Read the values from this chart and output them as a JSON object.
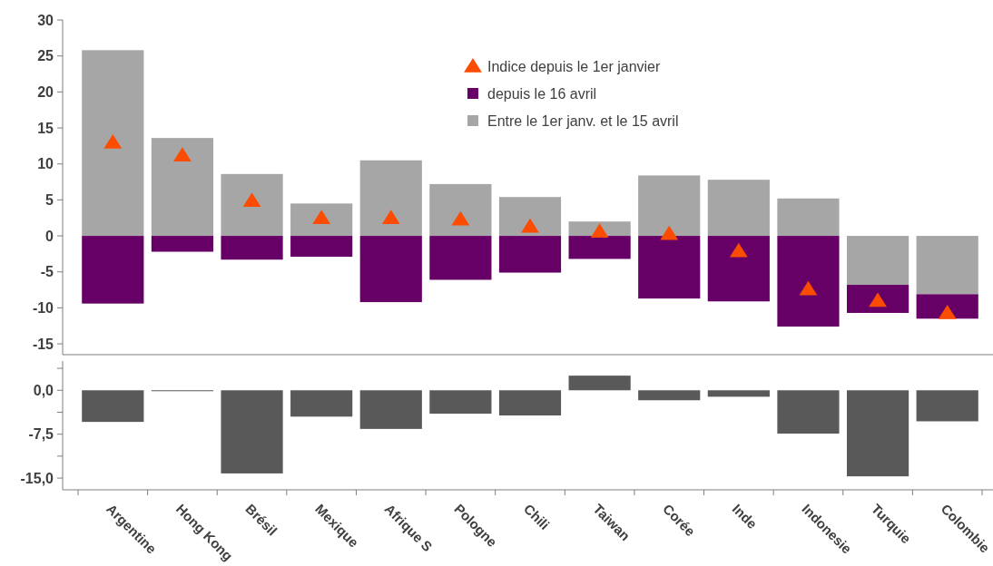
{
  "chart_data": [
    {
      "type": "bar",
      "stacked": true,
      "categories": [
        null,
        null,
        null,
        null,
        null,
        null,
        null,
        null,
        null,
        null,
        null,
        null,
        null
      ],
      "series": [
        {
          "name": "Entre le 1er janv. et le 15 avril",
          "color": "#a6a6a6",
          "values": [
            25.8,
            13.6,
            8.6,
            4.5,
            10.5,
            7.2,
            5.4,
            2.0,
            8.4,
            7.8,
            5.2,
            -6.8,
            -8.1
          ]
        },
        {
          "name": "depuis le 16 avril",
          "color": "#660066",
          "values": [
            -9.4,
            -2.2,
            -3.3,
            -2.9,
            -9.2,
            -6.1,
            -5.1,
            -3.2,
            -8.7,
            -9.1,
            -12.6,
            -3.9,
            -3.4
          ]
        },
        {
          "name": "Indice depuis le 1er janvier",
          "type": "scatter",
          "marker": "triangle",
          "color": "#fc4c02",
          "values": [
            13.0,
            11.2,
            4.9,
            2.5,
            2.5,
            2.3,
            1.3,
            0.6,
            0.3,
            -2.1,
            -7.4,
            -9.0,
            -10.7
          ]
        }
      ],
      "ylim": [
        -16.5,
        30
      ],
      "yticks": [
        -15,
        -10,
        -5,
        0,
        5,
        10,
        15,
        20,
        25,
        30
      ],
      "tick_labels": "y",
      "legend": "top right"
    },
    {
      "type": "bar",
      "categories": [
        "Argentine",
        "Hong Kong",
        "Brésil",
        "Mexique",
        "Afrique S",
        "Pologne",
        "Chili",
        "Taiwan",
        "Corée",
        "Inde",
        "Indonesie",
        "Turquie",
        "Colombie"
      ],
      "values": [
        -5.4,
        -0.1,
        -14.2,
        -4.5,
        -6.6,
        -4.0,
        -4.3,
        2.5,
        -1.7,
        -1.1,
        -7.4,
        -14.7,
        -5.3
      ],
      "color": "#595959",
      "ylim": [
        -17,
        5
      ],
      "yticks": [
        {
          "value": 3.75,
          "label": null
        },
        {
          "value": 0,
          "label": "0,0"
        },
        {
          "value": -3.75,
          "label": null
        },
        {
          "value": -7.5,
          "label": "-7,5"
        },
        {
          "value": -11.25,
          "label": null
        },
        {
          "value": -15,
          "label": "-15,0"
        }
      ]
    }
  ]
}
